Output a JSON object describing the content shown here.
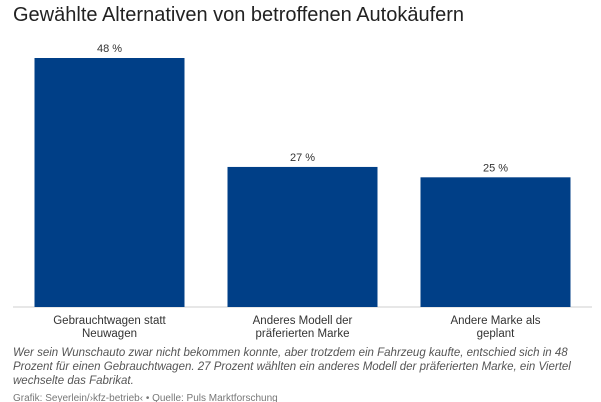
{
  "chart_data": {
    "type": "bar",
    "title": "Gewählte Alternativen von betroffenen Autokäufern",
    "categories": [
      [
        "Gebrauchtwagen statt",
        "Neuwagen"
      ],
      [
        "Anderes Modell der",
        "präferierten Marke"
      ],
      [
        "Andere Marke als",
        "geplant"
      ]
    ],
    "values": [
      48,
      27,
      25
    ],
    "value_labels": [
      "48 %",
      "27 %",
      "25 %"
    ],
    "ylim": [
      0,
      48
    ],
    "unit": "%",
    "bar_color": "#003f87",
    "grid": false,
    "legend": "none"
  },
  "note": "Wer sein Wunschauto zwar nicht bekommen konnte, aber trotzdem ein Fahrzeug kaufte, entschied sich in 48 Prozent für einen Gebrauchtwagen. 27 Prozent wählten ein anderes Modell der präferierten Marke, ein Viertel wechselte das Fabrikat.",
  "source": "Grafik: Seyerlein/›kfz-betrieb‹ • Quelle: Puls Marktforschung"
}
